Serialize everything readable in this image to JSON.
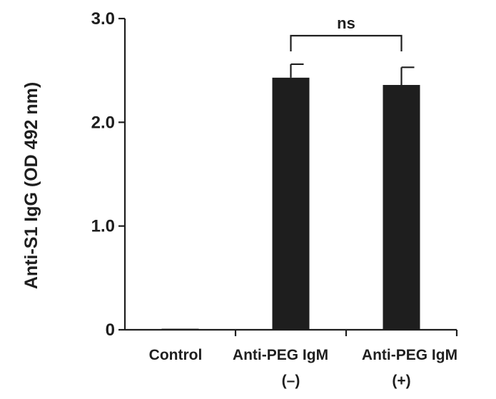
{
  "chart_data": {
    "type": "bar",
    "ylabel": "Anti-S1 IgG (OD 492 nm)",
    "ylim": [
      0,
      3.0
    ],
    "yticks": [
      {
        "value": 0,
        "label": "0"
      },
      {
        "value": 1.0,
        "label": "1.0"
      },
      {
        "value": 2.0,
        "label": "2.0"
      },
      {
        "value": 3.0,
        "label": "3.0"
      }
    ],
    "categories": [
      {
        "line1": "Control",
        "line2": ""
      },
      {
        "line1": "Anti-PEG IgM",
        "line2": "(–)"
      },
      {
        "line1": "Anti-PEG IgM",
        "line2": "(+)"
      }
    ],
    "values": [
      0.01,
      2.43,
      2.36
    ],
    "errors": [
      0.0,
      0.13,
      0.17
    ],
    "bar_color": "#1e1e1e",
    "significance": {
      "from": 1,
      "to": 2,
      "label": "ns"
    }
  }
}
